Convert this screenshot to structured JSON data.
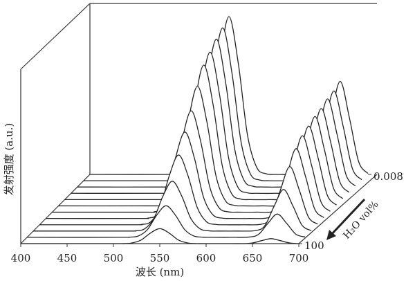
{
  "chart_data": {
    "type": "waterfall",
    "xlabel": "波长 (nm)",
    "ylabel": "发射强度 (a.u.)",
    "zlabel": "H₂O vol%",
    "xlim": [
      400,
      700
    ],
    "xticks": [
      400,
      450,
      500,
      550,
      600,
      650,
      700
    ],
    "ylim": [
      0,
      100
    ],
    "zticks": [
      100,
      0.008
    ],
    "color": "#222222",
    "x": [
      400,
      500,
      510,
      520,
      530,
      540,
      550,
      560,
      570,
      580,
      590,
      600,
      620,
      640,
      650,
      660,
      670,
      680,
      690,
      700
    ],
    "series": [
      {
        "values": [
          0,
          0,
          0,
          0.4,
          2.2,
          6.4,
          9,
          6.4,
          2.2,
          0.4,
          0,
          0,
          0,
          0,
          0.4,
          1.8,
          3,
          1.8,
          0.4,
          0
        ]
      },
      {
        "values": [
          0,
          0,
          0.1,
          0.8,
          4.7,
          13.4,
          19,
          13.4,
          4.7,
          0.8,
          0.1,
          0,
          0,
          0.2,
          1.9,
          8.5,
          14,
          8.5,
          1.9,
          0.2
        ]
      },
      {
        "values": [
          0,
          0,
          0.1,
          1.3,
          7.5,
          21.2,
          30,
          21.2,
          7.5,
          1.3,
          0.1,
          0,
          0,
          0.3,
          3.4,
          15.2,
          25,
          15.2,
          3.4,
          0.3
        ]
      },
      {
        "values": [
          0,
          0,
          0.2,
          1.8,
          10.5,
          29.7,
          42,
          29.7,
          10.5,
          1.8,
          0.2,
          0,
          0,
          0.4,
          4.7,
          21.2,
          35,
          21.2,
          4.7,
          0.4
        ]
      },
      {
        "values": [
          0,
          0,
          0.2,
          2.3,
          12.9,
          36.8,
          52,
          36.8,
          12.9,
          2.3,
          0.2,
          0,
          0,
          0.5,
          5.7,
          25.5,
          42,
          25.5,
          5.7,
          0.5
        ]
      },
      {
        "values": [
          0,
          0,
          0.2,
          2.7,
          15.2,
          43.1,
          61,
          43.1,
          15.2,
          2.7,
          0.2,
          0,
          0,
          0.5,
          6.2,
          27.9,
          46,
          27.9,
          6.2,
          0.5
        ]
      },
      {
        "values": [
          0,
          0,
          0.3,
          3.2,
          17.9,
          50.9,
          72,
          50.9,
          17.9,
          3.2,
          0.3,
          0,
          0,
          0.5,
          6.5,
          29.1,
          48,
          29.1,
          6.5,
          0.5
        ]
      },
      {
        "values": [
          0,
          0,
          0.3,
          3.6,
          20.2,
          57.3,
          81,
          57.3,
          20.2,
          3.6,
          0.3,
          0,
          0,
          0.6,
          6.8,
          30.4,
          50,
          30.4,
          6.8,
          0.6
        ]
      },
      {
        "values": [
          0,
          0,
          0.3,
          3.7,
          21.2,
          60.1,
          85,
          60.1,
          21.2,
          3.7,
          0.3,
          0,
          0,
          0.6,
          6.9,
          31,
          51,
          31,
          6.9,
          0.6
        ]
      },
      {
        "values": [
          0,
          0,
          0.4,
          3.9,
          22.2,
          62.9,
          89,
          62.9,
          22.2,
          3.9,
          0.4,
          0,
          0,
          0.6,
          7.2,
          32.2,
          53,
          32.2,
          7.2,
          0.6
        ]
      },
      {
        "values": [
          0,
          0,
          0.4,
          4,
          22.9,
          65,
          92,
          65,
          22.9,
          4,
          0.4,
          0,
          0,
          0.6,
          7.3,
          32.8,
          54,
          32.8,
          7.3,
          0.6
        ]
      },
      {
        "values": [
          0,
          0,
          0.4,
          4.2,
          23.7,
          67.2,
          95,
          67.2,
          23.7,
          4.2,
          0.4,
          0,
          0,
          0.6,
          7.6,
          34,
          56,
          34,
          7.6,
          0.6
        ]
      }
    ]
  }
}
